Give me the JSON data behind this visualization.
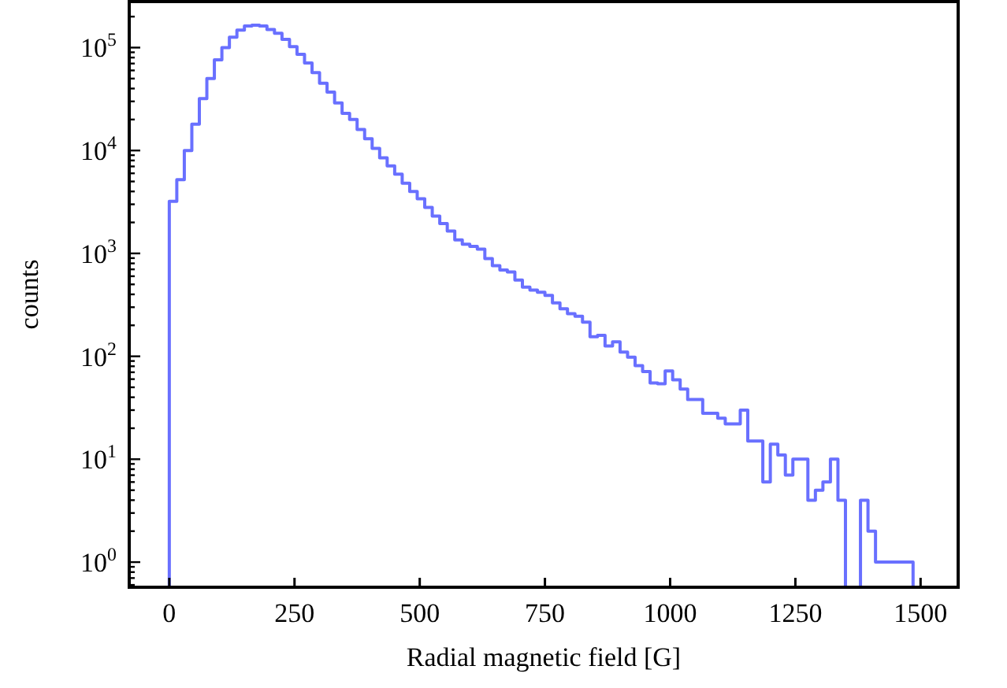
{
  "chart_data": {
    "type": "histogram",
    "xlabel": "Radial magnetic field [G]",
    "ylabel": "counts",
    "color": "#6970ff",
    "log": "y",
    "bins": [
      0,
      15,
      30,
      45,
      60,
      75,
      90,
      105,
      120,
      135,
      150,
      165,
      180,
      195,
      210,
      225,
      240,
      255,
      270,
      285,
      300,
      315,
      330,
      345,
      360,
      375,
      390,
      405,
      420,
      435,
      450,
      465,
      480,
      495,
      510,
      525,
      540,
      555,
      570,
      585,
      600,
      615,
      630,
      645,
      660,
      675,
      690,
      705,
      720,
      735,
      750,
      765,
      780,
      795,
      810,
      825,
      840,
      855,
      870,
      885,
      900,
      915,
      930,
      945,
      960,
      975,
      990,
      1005,
      1020,
      1035,
      1050,
      1065,
      1080,
      1095,
      1110,
      1125,
      1140,
      1155,
      1170,
      1185,
      1200,
      1215,
      1230,
      1245,
      1260,
      1275,
      1290,
      1305,
      1320,
      1335,
      1350,
      1365,
      1380,
      1395,
      1410,
      1425,
      1440,
      1455,
      1470,
      1485
    ],
    "values": [
      3200,
      5200,
      10000,
      18000,
      32000,
      50000,
      76000,
      100000,
      126000,
      148000,
      162000,
      165000,
      162000,
      150000,
      138000,
      120000,
      102000,
      86000,
      71000,
      57000,
      45000,
      37000,
      29000,
      23000,
      20000,
      16000,
      13000,
      10500,
      8500,
      7100,
      5900,
      4800,
      4000,
      3400,
      2800,
      2300,
      1950,
      1650,
      1350,
      1230,
      1170,
      1100,
      890,
      760,
      690,
      660,
      550,
      470,
      440,
      420,
      390,
      330,
      290,
      260,
      245,
      215,
      155,
      160,
      126,
      138,
      110,
      98,
      81,
      71,
      55,
      54,
      72,
      59,
      48,
      38,
      38,
      28,
      28,
      25,
      22,
      22,
      30,
      15,
      15,
      6,
      14,
      11,
      7,
      10,
      10,
      4,
      5,
      6,
      10,
      4,
      null,
      null,
      4,
      2,
      1,
      1,
      1,
      1,
      1
    ],
    "xlim": [
      -80,
      1575
    ],
    "xticks": [
      0,
      250,
      500,
      750,
      1000,
      1250,
      1500
    ],
    "ylim": [
      0.57,
      280000
    ],
    "yticks": [
      {
        "value": 0.6,
        "label": null
      },
      {
        "value": 0.7,
        "label": null
      },
      {
        "value": 0.8,
        "label": null
      },
      {
        "value": 0.9,
        "label": null
      },
      {
        "value": 1,
        "label": "10$^{0}$"
      },
      {
        "value": 2,
        "label": null
      },
      {
        "value": 3,
        "label": null
      },
      {
        "value": 4,
        "label": null
      },
      {
        "value": 5,
        "label": null
      },
      {
        "value": 6,
        "label": null
      },
      {
        "value": 7,
        "label": null
      },
      {
        "value": 8,
        "label": null
      },
      {
        "value": 9,
        "label": null
      },
      {
        "value": 10,
        "label": "10$^{1}$"
      },
      {
        "value": 20,
        "label": null
      },
      {
        "value": 30,
        "label": null
      },
      {
        "value": 40,
        "label": null
      },
      {
        "value": 50,
        "label": null
      },
      {
        "value": 60,
        "label": null
      },
      {
        "value": 70,
        "label": null
      },
      {
        "value": 80,
        "label": null
      },
      {
        "value": 90,
        "label": null
      },
      {
        "value": 100,
        "label": "10$^{2}$"
      },
      {
        "value": 200,
        "label": null
      },
      {
        "value": 300,
        "label": null
      },
      {
        "value": 400,
        "label": null
      },
      {
        "value": 500,
        "label": null
      },
      {
        "value": 600,
        "label": null
      },
      {
        "value": 700,
        "label": null
      },
      {
        "value": 800,
        "label": null
      },
      {
        "value": 900,
        "label": null
      },
      {
        "value": 1000,
        "label": "10$^{3}$"
      },
      {
        "value": 2000,
        "label": null
      },
      {
        "value": 3000,
        "label": null
      },
      {
        "value": 4000,
        "label": null
      },
      {
        "value": 5000,
        "label": null
      },
      {
        "value": 6000,
        "label": null
      },
      {
        "value": 7000,
        "label": null
      },
      {
        "value": 8000,
        "label": null
      },
      {
        "value": 9000,
        "label": null
      },
      {
        "value": 10000,
        "label": "10$^{4}$"
      },
      {
        "value": 20000,
        "label": null
      },
      {
        "value": 30000,
        "label": null
      },
      {
        "value": 40000,
        "label": null
      },
      {
        "value": 50000,
        "label": null
      },
      {
        "value": 60000,
        "label": null
      },
      {
        "value": 70000,
        "label": null
      },
      {
        "value": 80000,
        "label": null
      },
      {
        "value": 90000,
        "label": null
      },
      {
        "value": 100000,
        "label": "10$^{5}$"
      },
      {
        "value": 200000,
        "label": null
      }
    ]
  }
}
